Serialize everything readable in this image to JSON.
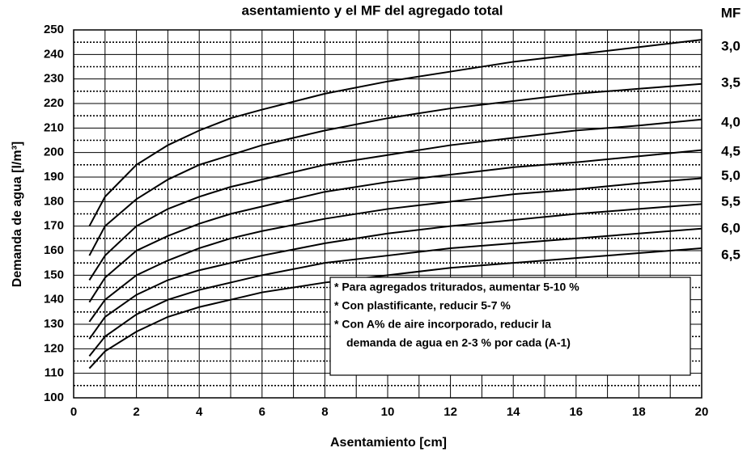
{
  "chart_data": {
    "type": "line",
    "title": "asentamiento y el MF del agregado total",
    "legend_title": "MF",
    "x_label": "Asentamiento [cm]",
    "y_label": "Demanda de agua [l/m³]",
    "xlim": [
      0,
      20
    ],
    "ylim": [
      100,
      250
    ],
    "xticks": [
      0,
      2,
      4,
      6,
      8,
      10,
      12,
      14,
      16,
      18,
      20
    ],
    "xminor": [
      1,
      3,
      5,
      7,
      9,
      11,
      13,
      15,
      17,
      19
    ],
    "yticks": [
      100,
      110,
      120,
      130,
      140,
      150,
      160,
      170,
      180,
      190,
      200,
      210,
      220,
      230,
      240,
      250
    ],
    "yminor": [
      105,
      115,
      125,
      135,
      145,
      155,
      165,
      175,
      185,
      195,
      205,
      215,
      225,
      235,
      245
    ],
    "grid": true,
    "x": [
      0.5,
      1,
      2,
      3,
      4,
      5,
      6,
      8,
      10,
      12,
      14,
      16,
      18,
      20
    ],
    "series": [
      {
        "name": "3,0",
        "color": "#000000",
        "values": [
          170,
          182,
          195,
          203,
          209,
          214,
          217.5,
          224,
          229,
          233,
          237,
          240,
          243,
          246
        ]
      },
      {
        "name": "3,5",
        "color": "#000000",
        "values": [
          158,
          170,
          181,
          189,
          195,
          199,
          203,
          209,
          214,
          218,
          221,
          224,
          226,
          228
        ]
      },
      {
        "name": "4,0",
        "color": "#000000",
        "values": [
          148,
          158,
          170,
          177,
          182,
          186,
          189,
          195,
          199,
          203,
          206,
          209,
          211,
          213.5
        ]
      },
      {
        "name": "4,5",
        "color": "#000000",
        "values": [
          139,
          149,
          160,
          166,
          171,
          175,
          178,
          184,
          188,
          191,
          194,
          196,
          198.5,
          201
        ]
      },
      {
        "name": "5,0",
        "color": "#000000",
        "values": [
          131,
          140,
          150,
          156,
          161,
          165,
          168,
          173,
          177,
          180,
          183,
          185,
          187.5,
          189.5
        ]
      },
      {
        "name": "5,5",
        "color": "#000000",
        "values": [
          124,
          133,
          142,
          148,
          152,
          155,
          158,
          163,
          167,
          170,
          172.5,
          175,
          177,
          179
        ]
      },
      {
        "name": "6,0",
        "color": "#000000",
        "values": [
          117,
          125,
          134,
          140,
          144,
          147,
          150,
          155,
          158,
          161,
          163,
          165,
          167,
          169
        ]
      },
      {
        "name": "6,5",
        "color": "#000000",
        "values": [
          112,
          119,
          127,
          133,
          137,
          140,
          143,
          147,
          150,
          153,
          155,
          157,
          159,
          161
        ]
      }
    ],
    "notes": [
      "* Para agregados triturados, aumentar 5-10 %",
      "* Con plastificante, reducir 5-7 %",
      "* Con A% de aire incorporado, reducir la",
      "demanda de agua en 2-3 % por cada (A-1)"
    ]
  }
}
